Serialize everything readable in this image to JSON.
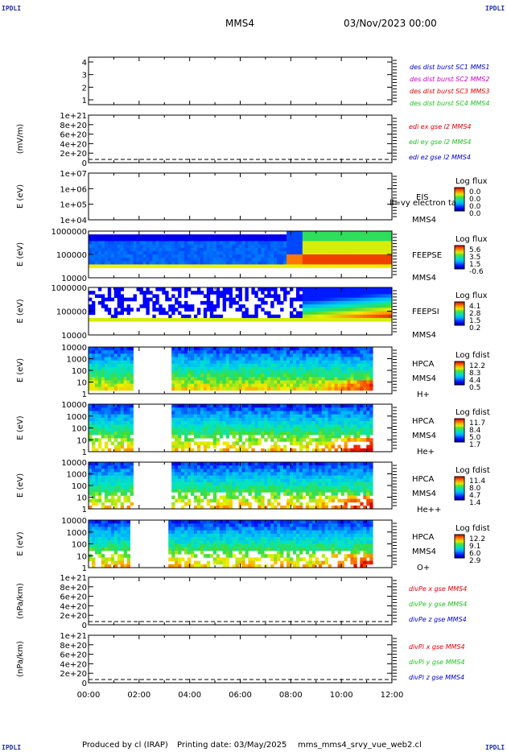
{
  "header": {
    "corner_tl": "IPDLI",
    "corner_tr": "IPDLI",
    "corner_bl": "IPDLI",
    "corner_br": "IPDLI",
    "spacecraft": "MMS4",
    "datetime": "03/Nov/2023 00:00"
  },
  "footer": {
    "produced": "Produced by cl (IRAP)",
    "printing": "Printing date: 03/May/2025",
    "script": "mms_mms4_srvy_vue_web2.cl"
  },
  "colors": {
    "bg": "#ffffff",
    "frame": "#000000",
    "blue": "#0000c8",
    "magenta": "#c800c8",
    "red": "#e00000",
    "green": "#22c022"
  },
  "chart_data": [
    {
      "type": "line",
      "id": "p1",
      "ylim": [
        0.5,
        4.5
      ],
      "yticks": [
        "4",
        "3",
        "2",
        "1"
      ],
      "legend": [
        {
          "text": "des dist burst SC1 MMS1",
          "color": "#0000c8"
        },
        {
          "text": "des dist burst SC2 MMS2",
          "color": "#c800c8"
        },
        {
          "text": "des dist burst SC3 MMS3",
          "color": "#e00000"
        },
        {
          "text": "des dist burst SC4 MMS4",
          "color": "#22c022"
        }
      ],
      "series": []
    },
    {
      "type": "line",
      "id": "p2",
      "ylabel": "(mV/m)",
      "yticks": [
        "1e+21",
        "8e+20",
        "6e+20",
        "4e+20",
        "2e+20",
        "0"
      ],
      "legend": [
        {
          "text": "edi ex gse l2 MMS4",
          "color": "#e00000"
        },
        {
          "text": "edi ey gse l2 MMS4",
          "color": "#22c022"
        },
        {
          "text": "edi ez gse l2 MMS4",
          "color": "#0000c8"
        }
      ],
      "series": []
    },
    {
      "type": "heatmap",
      "id": "p3",
      "ylabel": "E (eV)",
      "yticks": [
        "1e+07",
        "1e+06",
        "1e+05",
        "1e+04"
      ],
      "right_labels": [
        "EIS",
        "MMS4"
      ],
      "overlay": "ll=vy electron ta",
      "cbar_title": "Log flux",
      "cbar_ticks": [
        "0.0",
        "0.0",
        "0.0",
        "0.0"
      ]
    },
    {
      "type": "heatmap",
      "id": "p4",
      "ylabel": "E (eV)",
      "yticks": [
        "1000000",
        "100000",
        "10000"
      ],
      "right_labels": [
        "FEEPSE",
        "MMS4"
      ],
      "cbar_title": "Log flux",
      "cbar_ticks": [
        "5.6",
        "3.5",
        "1.5",
        "-0.6"
      ]
    },
    {
      "type": "heatmap",
      "id": "p5",
      "ylabel": "E (eV)",
      "yticks": [
        "1000000",
        "100000",
        "10000"
      ],
      "right_labels": [
        "FEEPSI",
        "MMS4"
      ],
      "cbar_title": "Log flux",
      "cbar_ticks": [
        "4.1",
        "2.8",
        "1.5",
        "0.2"
      ]
    },
    {
      "type": "heatmap",
      "id": "p6",
      "ylabel": "E (eV)",
      "yticks": [
        "10000",
        "1000",
        "100",
        "10",
        "1"
      ],
      "right_labels": [
        "HPCA",
        "MMS4",
        "H+"
      ],
      "cbar_title": "Log fdist",
      "cbar_ticks": [
        "12.2",
        "8.3",
        "4.4",
        "0.5"
      ]
    },
    {
      "type": "heatmap",
      "id": "p7",
      "ylabel": "E (eV)",
      "yticks": [
        "10000",
        "1000",
        "100",
        "10",
        "1"
      ],
      "right_labels": [
        "HPCA",
        "MMS4",
        "He+"
      ],
      "cbar_title": "Log fdist",
      "cbar_ticks": [
        "11.7",
        "8.4",
        "5.0",
        "1.7"
      ]
    },
    {
      "type": "heatmap",
      "id": "p8",
      "ylabel": "E (eV)",
      "yticks": [
        "10000",
        "1000",
        "100",
        "10",
        "1"
      ],
      "right_labels": [
        "HPCA",
        "MMS4",
        "He++"
      ],
      "cbar_title": "Log fdist",
      "cbar_ticks": [
        "11.4",
        "8.0",
        "4.7",
        "1.4"
      ]
    },
    {
      "type": "heatmap",
      "id": "p9",
      "ylabel": "E (eV)",
      "yticks": [
        "10000",
        "1000",
        "100",
        "10",
        "1"
      ],
      "right_labels": [
        "HPCA",
        "MMS4",
        "O+"
      ],
      "cbar_title": "Log fdist",
      "cbar_ticks": [
        "12.2",
        "9.1",
        "6.0",
        "2.9"
      ]
    },
    {
      "type": "line",
      "id": "p10",
      "ylabel": "(nPa/km)",
      "yticks": [
        "1e+21",
        "8e+20",
        "6e+20",
        "4e+20",
        "2e+20",
        "0"
      ],
      "legend": [
        {
          "text": "divPe x gse MMS4",
          "color": "#e00000"
        },
        {
          "text": "divPe y gse MMS4",
          "color": "#22c022"
        },
        {
          "text": "divPe z gse MMS4",
          "color": "#0000c8"
        }
      ],
      "series": []
    },
    {
      "type": "line",
      "id": "p11",
      "ylabel": "(nPa/km)",
      "yticks": [
        "1e+21",
        "8e+20",
        "6e+20",
        "4e+20",
        "2e+20",
        "0"
      ],
      "legend": [
        {
          "text": "divPi x gse MMS4",
          "color": "#e00000"
        },
        {
          "text": "divPi y gse MMS4",
          "color": "#22c022"
        },
        {
          "text": "divPi z gse MMS4",
          "color": "#0000c8"
        }
      ],
      "series": []
    }
  ],
  "xaxis": {
    "ticks": [
      "00:00",
      "02:00",
      "04:00",
      "06:00",
      "08:00",
      "10:00",
      "12:00"
    ],
    "range_hours": [
      0,
      12
    ]
  }
}
